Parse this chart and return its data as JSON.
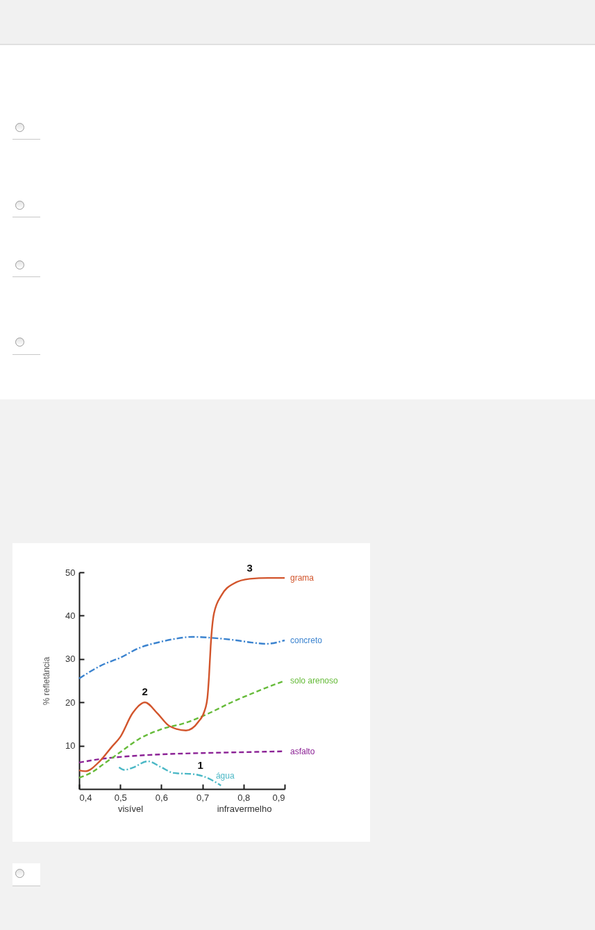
{
  "chart_data": {
    "type": "line",
    "ylabel": "% refletância",
    "xlim": [
      0.4,
      0.9
    ],
    "ylim": [
      0,
      50
    ],
    "xticks": [
      {
        "value": 0.4,
        "label": "0,4"
      },
      {
        "value": 0.5,
        "label": "0,5"
      },
      {
        "value": 0.6,
        "label": "0,6"
      },
      {
        "value": 0.7,
        "label": "0,7"
      },
      {
        "value": 0.8,
        "label": "0,8"
      },
      {
        "value": 0.9,
        "label": "0,9"
      }
    ],
    "yticks": [
      10,
      20,
      30,
      40,
      50
    ],
    "series": [
      {
        "name": "grama",
        "color": "#d2552c",
        "line_style": "solid",
        "x": [
          0.4,
          0.415,
          0.45,
          0.48,
          0.5,
          0.53,
          0.56,
          0.59,
          0.62,
          0.66,
          0.69,
          0.705,
          0.712,
          0.716,
          0.72,
          0.728,
          0.747,
          0.776,
          0.815,
          0.86,
          0.9
        ],
        "values": [
          4.3,
          4.1,
          6.4,
          9.8,
          12,
          17.5,
          20,
          17.5,
          14.5,
          13.5,
          15.5,
          18,
          21,
          26,
          33,
          40.5,
          44.8,
          47.4,
          48.5,
          48.7,
          48.7
        ]
      },
      {
        "name": "concreto",
        "color": "#3b83cf",
        "line_style": "dashdot",
        "x": [
          0.4,
          0.46,
          0.5,
          0.545,
          0.6,
          0.63,
          0.675,
          0.72,
          0.775,
          0.82,
          0.855,
          0.9
        ],
        "values": [
          25.5,
          28.8,
          30.3,
          32.5,
          34,
          34.6,
          35.1,
          34.9,
          34.4,
          33.8,
          33.5,
          34.3
        ]
      },
      {
        "name": "solo arenoso",
        "color": "#66bb3a",
        "line_style": "dashed",
        "x": [
          0.4,
          0.43,
          0.46,
          0.5,
          0.545,
          0.6,
          0.66,
          0.705,
          0.775,
          0.83,
          0.9
        ],
        "values": [
          2.6,
          3.8,
          5.8,
          8.5,
          11.5,
          13.8,
          15.3,
          17,
          20.2,
          22.4,
          25
        ]
      },
      {
        "name": "asfalto",
        "color": "#8c2396",
        "line_style": "dashed",
        "x": [
          0.4,
          0.45,
          0.5,
          0.6,
          0.7,
          0.8,
          0.9
        ],
        "values": [
          6.1,
          6.9,
          7.4,
          8,
          8.3,
          8.5,
          8.7
        ]
      },
      {
        "name": "água",
        "color": "#4bb8c6",
        "line_style": "dashdot",
        "x": [
          0.497,
          0.51,
          0.53,
          0.567,
          0.6,
          0.63,
          0.68,
          0.7,
          0.72,
          0.745
        ],
        "values": [
          5,
          4.4,
          4.9,
          6.4,
          5,
          3.7,
          3.4,
          3,
          2.2,
          0.8
        ]
      }
    ],
    "annotations": [
      {
        "text": "1",
        "x": 0.695,
        "y": 3.1
      },
      {
        "text": "2",
        "x": 0.56,
        "y": 20
      },
      {
        "text": "3",
        "x": 0.815,
        "y": 48.5
      },
      "visível",
      "infravermelho"
    ]
  }
}
